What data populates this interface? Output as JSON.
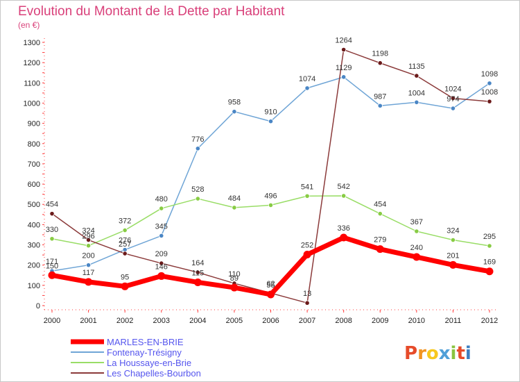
{
  "chart_data": {
    "type": "line",
    "title": "Evolution du Montant de la Dette par Habitant",
    "unit_label": "(en €)",
    "x": [
      "2000",
      "2001",
      "2002",
      "2003",
      "2004",
      "2005",
      "2006",
      "2007",
      "2008",
      "2009",
      "2010",
      "2011",
      "2012"
    ],
    "ylim": [
      0,
      1300
    ],
    "yticks": [
      0,
      100,
      200,
      300,
      400,
      500,
      600,
      700,
      800,
      900,
      1000,
      1100,
      1200,
      1300
    ],
    "grid": false,
    "legend_position": "bottom-left",
    "series": [
      {
        "name": "Fontenay-Trésigny",
        "color": "#6fa5d6",
        "point_color": "#4a86c5",
        "width": 1.5,
        "values": [
          171,
          200,
          276,
          345,
          776,
          958,
          910,
          1074,
          1129,
          987,
          1004,
          974,
          1098
        ]
      },
      {
        "name": "La Houssaye-en-Brie",
        "color": "#99dd66",
        "point_color": "#88cc44",
        "width": 1.5,
        "values": [
          330,
          296,
          372,
          480,
          528,
          484,
          496,
          541,
          542,
          454,
          367,
          324,
          295
        ]
      },
      {
        "name": "Les Chapelles-Bourbon",
        "color": "#8b3a3a",
        "point_color": "#6b1a1a",
        "width": 1.5,
        "values": [
          454,
          324,
          257,
          209,
          164,
          110,
          62,
          13,
          1264,
          1198,
          1135,
          1024,
          1008
        ]
      },
      {
        "name": "MARLES-EN-BRIE",
        "color": "#ff0000",
        "point_color": "#ff0000",
        "width": 7,
        "values": [
          150,
          117,
          95,
          146,
          115,
          89,
          55,
          252,
          336,
          279,
          240,
          201,
          169
        ]
      }
    ],
    "legend_order": [
      "MARLES-EN-BRIE",
      "Fontenay-Trésigny",
      "La Houssaye-en-Brie",
      "Les Chapelles-Bourbon"
    ]
  },
  "logo": {
    "text": "Proxiti"
  }
}
